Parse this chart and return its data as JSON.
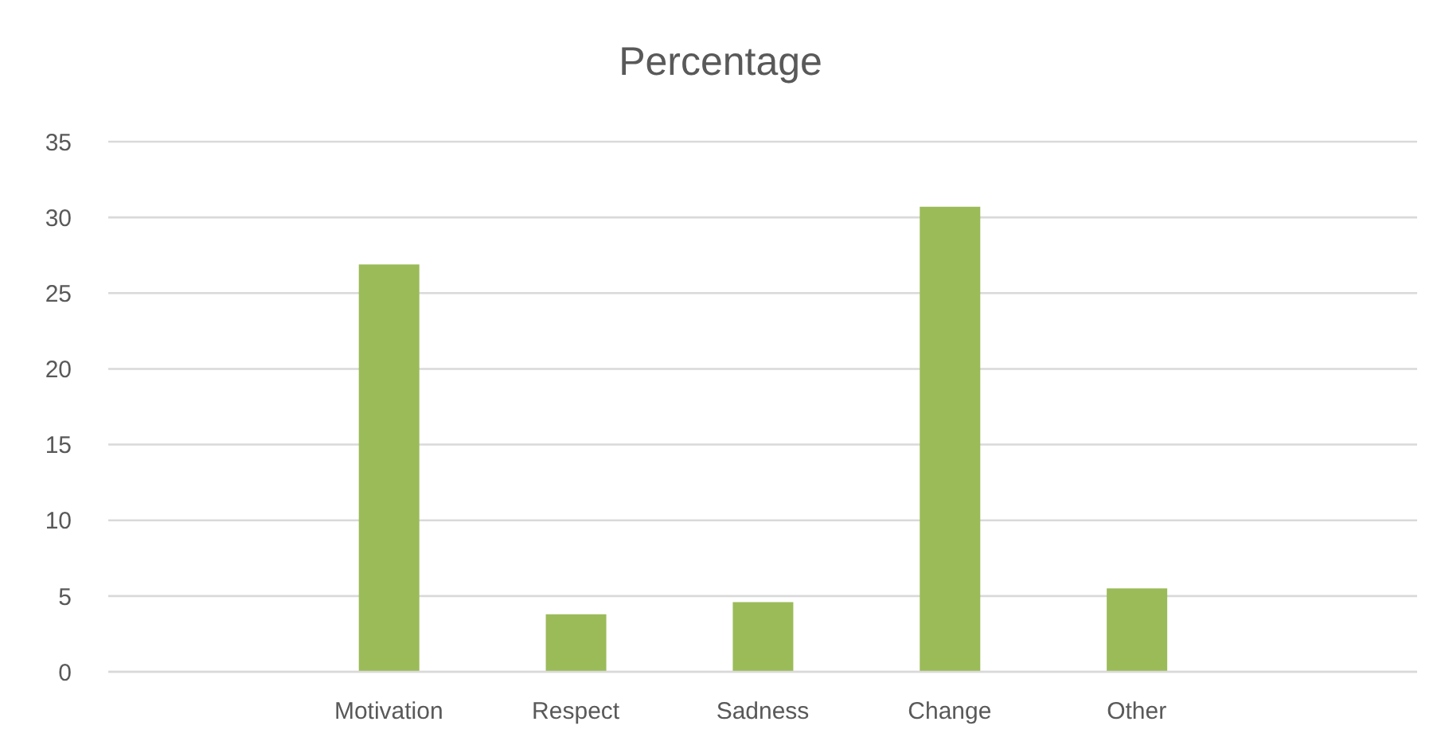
{
  "chart_data": {
    "type": "bar",
    "title": "Percentage",
    "categories": [
      null,
      "Motivation",
      "Respect",
      "Sadness",
      "Change",
      "Other",
      null
    ],
    "values": [
      null,
      26.9,
      3.8,
      4.6,
      30.7,
      5.5,
      null
    ],
    "color": "#9bbb59",
    "ylim": [
      0,
      35
    ],
    "yticks": [
      0,
      5,
      10,
      15,
      20,
      25,
      30,
      35
    ],
    "grid": "y"
  }
}
